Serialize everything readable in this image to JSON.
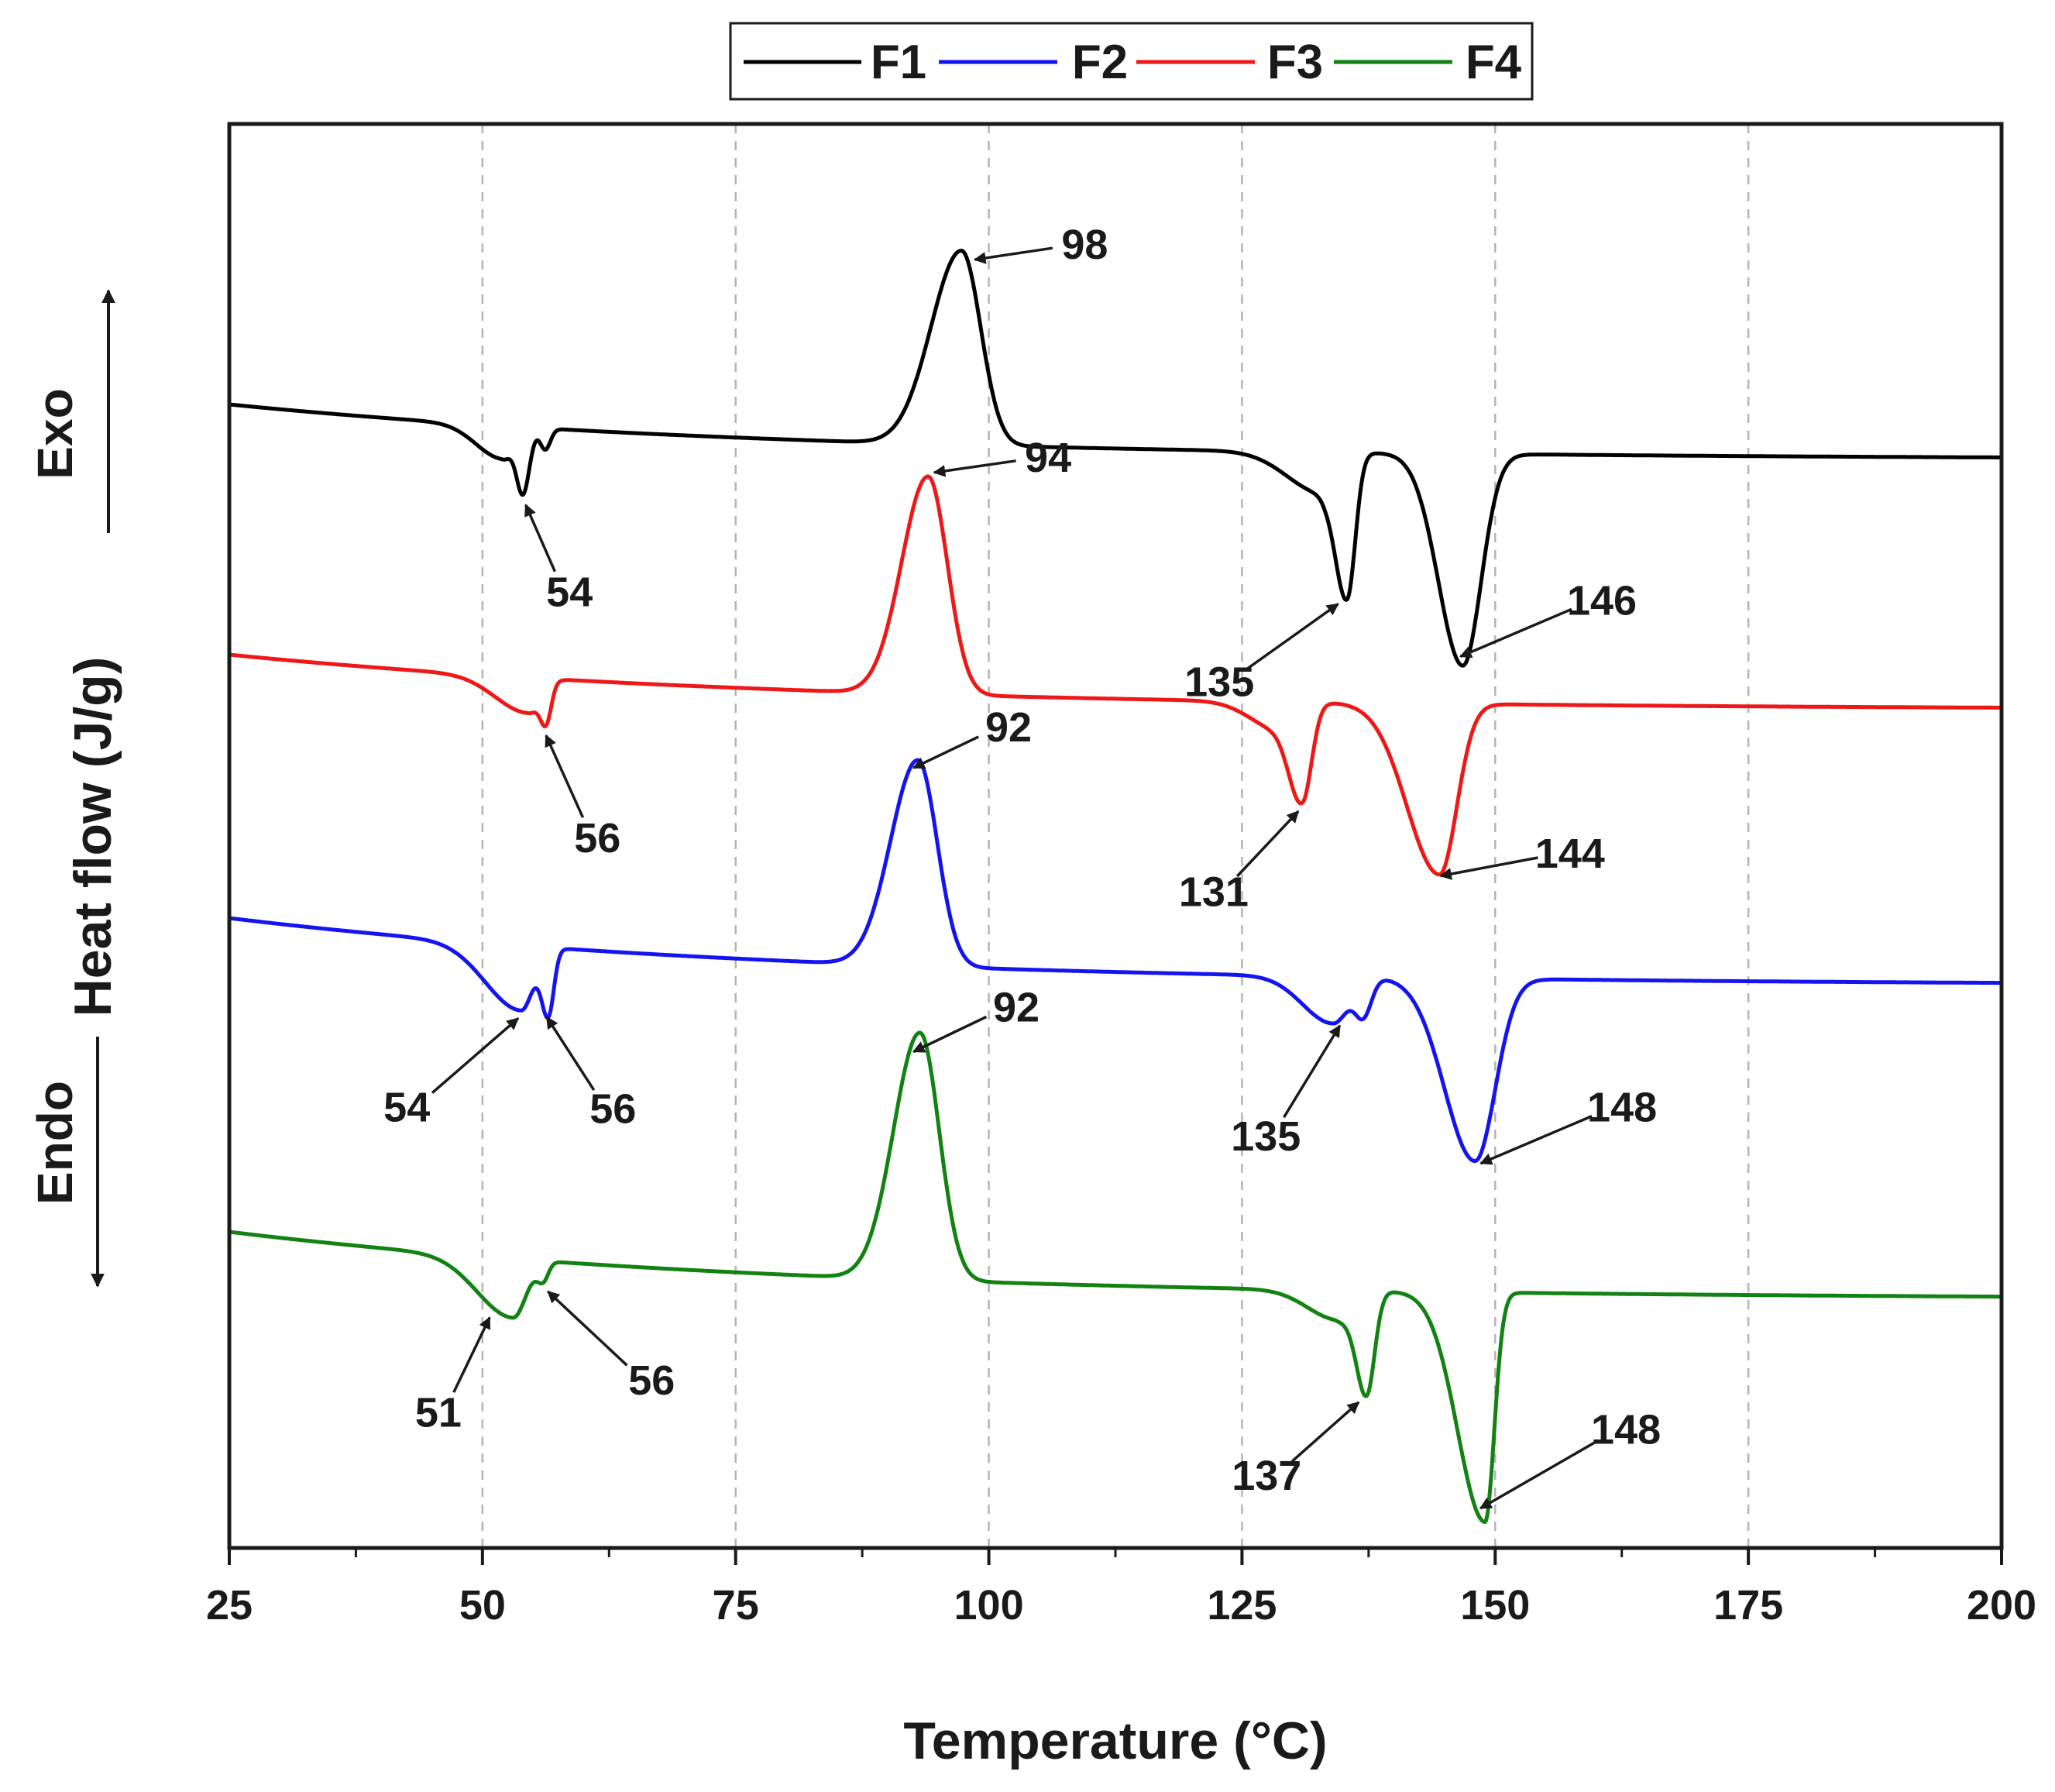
{
  "chart_data": {
    "type": "line",
    "title": "",
    "xlabel": "Temperature (°C)",
    "ylabel": "Heat flow (J/g)",
    "direction_labels": {
      "up": "Exo",
      "down": "Endo"
    },
    "xlim": [
      25,
      200
    ],
    "xticks": [
      25,
      50,
      75,
      100,
      125,
      150,
      175,
      200
    ],
    "x_gridlines": [
      50,
      75,
      100,
      125,
      150,
      175
    ],
    "grid": "vertical dashed",
    "legend_position": "top-center",
    "series": [
      {
        "name": "F1",
        "color": "#000000",
        "offset": 0,
        "baseline_start": 0,
        "baseline_end": -0.45,
        "events": [
          {
            "center": 52.0,
            "amp": -0.28,
            "sl": 2.6,
            "sr": 0.9
          },
          {
            "center": 54.0,
            "amp": -0.55,
            "sl": 0.65,
            "sr": 0.65
          },
          {
            "center": 56.2,
            "amp": -0.18,
            "sl": 0.5,
            "sr": 0.5
          },
          {
            "center": 97.3,
            "amp": 1.65,
            "sl": 3.0,
            "sr": 1.9
          },
          {
            "center": 135.4,
            "amp": -1.15,
            "sl": 1.1,
            "sr": 0.8
          },
          {
            "center": 133.0,
            "amp": -0.35,
            "sl": 3.5,
            "sr": 1.5
          },
          {
            "center": 146.8,
            "amp": -1.8,
            "sl": 2.4,
            "sr": 1.8
          }
        ],
        "peaks": [
          {
            "label": "54",
            "x": 54,
            "kind": "endo"
          },
          {
            "label": "98",
            "x": 98,
            "kind": "exo"
          },
          {
            "label": "135",
            "x": 135,
            "kind": "endo"
          },
          {
            "label": "146",
            "x": 146,
            "kind": "endo"
          }
        ]
      },
      {
        "name": "F2",
        "color": "#1414f0",
        "offset": -4.9,
        "baseline_start": 0,
        "baseline_end": -0.55,
        "events": [
          {
            "center": 53.8,
            "amp": -0.55,
            "sl": 3.5,
            "sr": 1.2
          },
          {
            "center": 56.5,
            "amp": -0.55,
            "sl": 0.65,
            "sr": 0.55
          },
          {
            "center": 93.0,
            "amp": 1.75,
            "sl": 2.7,
            "sr": 1.9
          },
          {
            "center": 134.0,
            "amp": -0.4,
            "sl": 3.0,
            "sr": 1.5
          },
          {
            "center": 137.0,
            "amp": -0.3,
            "sl": 0.8,
            "sr": 0.8
          },
          {
            "center": 148.0,
            "amp": -1.55,
            "sl": 3.0,
            "sr": 2.0
          }
        ],
        "peaks": [
          {
            "label": "54",
            "x": 54,
            "kind": "endo"
          },
          {
            "label": "56",
            "x": 56,
            "kind": "endo"
          },
          {
            "label": "92",
            "x": 92,
            "kind": "exo"
          },
          {
            "label": "135",
            "x": 135,
            "kind": "endo"
          },
          {
            "label": "148",
            "x": 148,
            "kind": "endo"
          }
        ]
      },
      {
        "name": "F3",
        "color": "#ef1818",
        "offset": -2.3,
        "baseline_start": 0,
        "baseline_end": -0.45,
        "events": [
          {
            "center": 54.5,
            "amp": -0.3,
            "sl": 3.2,
            "sr": 1.2
          },
          {
            "center": 56.3,
            "amp": -0.3,
            "sl": 0.55,
            "sr": 0.5
          },
          {
            "center": 94.0,
            "amp": 1.85,
            "sl": 2.6,
            "sr": 1.9
          },
          {
            "center": 131.0,
            "amp": -0.75,
            "sl": 1.2,
            "sr": 0.9
          },
          {
            "center": 129.0,
            "amp": -0.25,
            "sl": 3.0,
            "sr": 1.5
          },
          {
            "center": 144.5,
            "amp": -1.45,
            "sl": 3.2,
            "sr": 1.7
          }
        ],
        "peaks": [
          {
            "label": "56",
            "x": 56,
            "kind": "endo"
          },
          {
            "label": "94",
            "x": 94,
            "kind": "exo"
          },
          {
            "label": "131",
            "x": 131,
            "kind": "endo"
          },
          {
            "label": "144",
            "x": 144,
            "kind": "endo"
          }
        ]
      },
      {
        "name": "F4",
        "color": "#128212",
        "offset": -7.45,
        "baseline_start": 0,
        "baseline_end": -0.55,
        "events": [
          {
            "center": 53.0,
            "amp": -0.5,
            "sl": 3.5,
            "sr": 1.3
          },
          {
            "center": 56.0,
            "amp": -0.15,
            "sl": 0.6,
            "sr": 0.5
          },
          {
            "center": 93.2,
            "amp": 2.1,
            "sl": 2.6,
            "sr": 1.9
          },
          {
            "center": 137.3,
            "amp": -0.85,
            "sl": 1.0,
            "sr": 0.8
          },
          {
            "center": 134.5,
            "amp": -0.25,
            "sl": 3.0,
            "sr": 1.5
          },
          {
            "center": 149.0,
            "amp": -1.95,
            "sl": 2.7,
            "sr": 0.9
          }
        ],
        "peaks": [
          {
            "label": "51",
            "x": 51,
            "kind": "endo"
          },
          {
            "label": "56",
            "x": 56,
            "kind": "endo"
          },
          {
            "label": "92",
            "x": 92,
            "kind": "exo"
          },
          {
            "label": "137",
            "x": 137,
            "kind": "endo"
          },
          {
            "label": "148",
            "x": 148,
            "kind": "endo"
          }
        ]
      }
    ]
  }
}
